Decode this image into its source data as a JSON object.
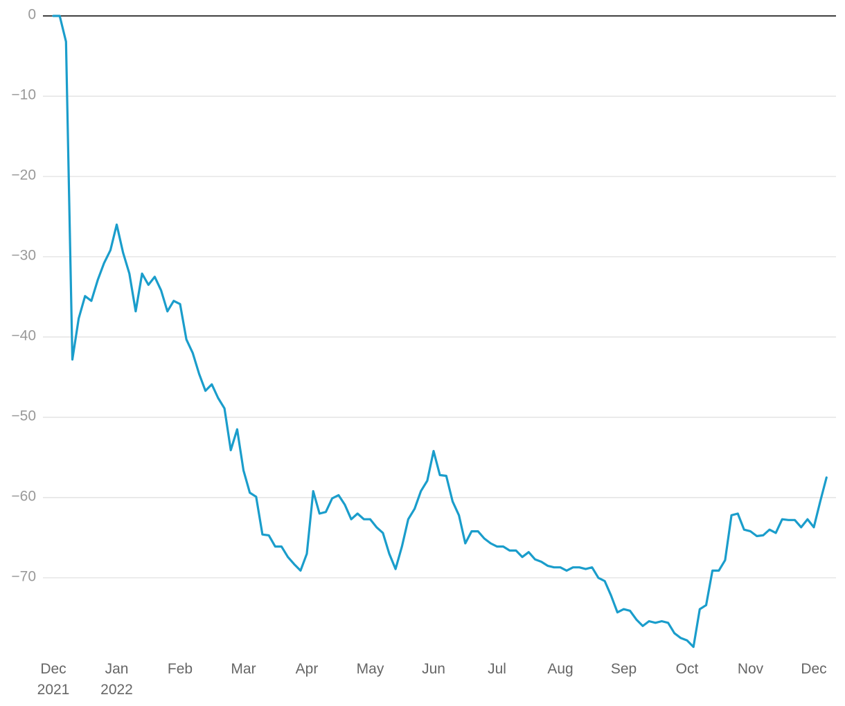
{
  "chart_data": {
    "type": "line",
    "categories": [
      "Dec\n2021",
      null,
      null,
      null,
      null,
      null,
      null,
      null,
      null,
      null,
      "Jan\n2022",
      null,
      null,
      null,
      null,
      null,
      null,
      null,
      null,
      null,
      "Feb",
      null,
      null,
      null,
      null,
      null,
      null,
      null,
      null,
      null,
      "Mar",
      null,
      null,
      null,
      null,
      null,
      null,
      null,
      null,
      null,
      "Apr",
      null,
      null,
      null,
      null,
      null,
      null,
      null,
      null,
      null,
      "May",
      null,
      null,
      null,
      null,
      null,
      null,
      null,
      null,
      null,
      "Jun",
      null,
      null,
      null,
      null,
      null,
      null,
      null,
      null,
      null,
      "Jul",
      null,
      null,
      null,
      null,
      null,
      null,
      null,
      null,
      null,
      "Aug",
      null,
      null,
      null,
      null,
      null,
      null,
      null,
      null,
      null,
      "Sep",
      null,
      null,
      null,
      null,
      null,
      null,
      null,
      null,
      null,
      "Oct",
      null,
      null,
      null,
      null,
      null,
      null,
      null,
      null,
      null,
      "Nov",
      null,
      null,
      null,
      null,
      null,
      null,
      null,
      null,
      null,
      "Dec",
      null,
      null
    ],
    "values": [
      0,
      0,
      -3.2,
      -42.8,
      -37.7,
      -34.9,
      -35.5,
      -32.9,
      -30.8,
      -29.2,
      -26.0,
      -29.5,
      -32.1,
      -36.8,
      -32.1,
      -33.5,
      -32.5,
      -34.2,
      -36.8,
      -35.5,
      -35.9,
      -40.3,
      -42.0,
      -44.6,
      -46.7,
      -45.9,
      -47.6,
      -48.9,
      -54.1,
      -51.5,
      -56.6,
      -59.4,
      -59.9,
      -64.6,
      -64.7,
      -66.1,
      -66.1,
      -67.4,
      -68.3,
      -69.1,
      -67.0,
      -59.2,
      -62.0,
      -61.8,
      -60.1,
      -59.7,
      -60.9,
      -62.7,
      -62.0,
      -62.7,
      -62.7,
      -63.7,
      -64.4,
      -67.0,
      -68.9,
      -66.1,
      -62.7,
      -61.4,
      -59.2,
      -57.9,
      -54.2,
      -57.2,
      -57.3,
      -60.5,
      -62.2,
      -65.7,
      -64.2,
      -64.2,
      -65.1,
      -65.7,
      -66.1,
      -66.1,
      -66.6,
      -66.6,
      -67.4,
      -66.8,
      -67.7,
      -68.0,
      -68.5,
      -68.7,
      -68.7,
      -69.1,
      -68.7,
      -68.7,
      -68.9,
      -68.7,
      -70.0,
      -70.4,
      -72.2,
      -74.3,
      -73.9,
      -74.1,
      -75.2,
      -76.0,
      -75.4,
      -75.6,
      -75.4,
      -75.6,
      -76.9,
      -77.5,
      -77.8,
      -78.6,
      -73.9,
      -73.4,
      -69.1,
      -69.1,
      -67.8,
      -62.2,
      -62.0,
      -64.0,
      -64.2,
      -64.8,
      -64.7,
      -64.0,
      -64.4,
      -62.7,
      -62.8,
      -62.8,
      -63.7,
      -62.7,
      -63.7,
      -60.5,
      -57.5
    ],
    "color": "#1a9dcb",
    "ylim": [
      -79.5,
      0
    ],
    "yticks": [
      0,
      {
        "value": -10,
        "label": "−10"
      },
      {
        "value": -20,
        "label": "−20"
      },
      {
        "value": -30,
        "label": "−30"
      },
      {
        "value": -40,
        "label": "−40"
      },
      {
        "value": -50,
        "label": "−50"
      },
      {
        "value": -60,
        "label": "−60"
      },
      {
        "value": -70,
        "label": "−70"
      }
    ],
    "grid": true
  }
}
